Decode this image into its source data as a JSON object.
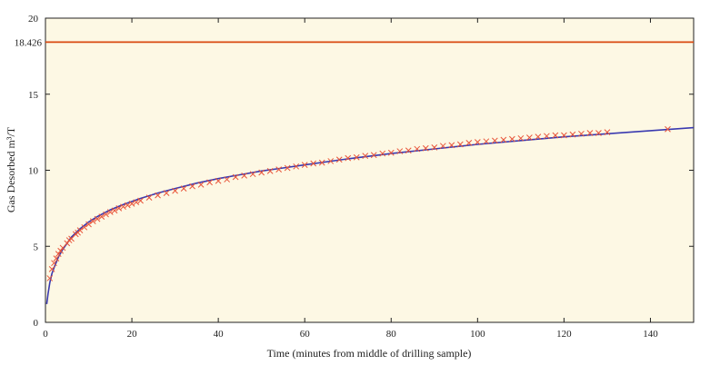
{
  "chart_data": {
    "type": "scatter",
    "title": "",
    "xlabel": "Time (minutes from middle of drilling sample)",
    "ylabel": "Gas Desorbed m³/T",
    "xlim": [
      0,
      150
    ],
    "ylim": [
      0,
      20
    ],
    "x_ticks": [
      "0",
      "20",
      "40",
      "60",
      "80",
      "100",
      "120",
      "140"
    ],
    "y_ticks": [
      "0",
      "5",
      "10",
      "15",
      "20"
    ],
    "grid": false,
    "background_color": "#fdf8e4",
    "reference_line": {
      "y": 18.426,
      "label": "18.426",
      "color": "#d9480f"
    },
    "series": [
      {
        "kind": "points",
        "marker": "x",
        "color": "#e8553a",
        "x": [
          1,
          1.5,
          2,
          2.5,
          3,
          3.5,
          4,
          5,
          5.5,
          6,
          7,
          7.5,
          8,
          9,
          10,
          11,
          12,
          13,
          14,
          15,
          16,
          17,
          18,
          19,
          20,
          21,
          22,
          24,
          26,
          28,
          30,
          32,
          34,
          36,
          38,
          40,
          42,
          44,
          46,
          48,
          50,
          52,
          54,
          56,
          58,
          60,
          62,
          64,
          66,
          68,
          70,
          72,
          74,
          76,
          78,
          80,
          82,
          84,
          86,
          88,
          90,
          92,
          94,
          96,
          98,
          100,
          102,
          104,
          106,
          108,
          110,
          112,
          114,
          116,
          118,
          120,
          122,
          124,
          126,
          128,
          130,
          144
        ],
        "y": [
          2.9,
          3.5,
          3.9,
          4.2,
          4.5,
          4.7,
          4.9,
          5.2,
          5.4,
          5.5,
          5.8,
          5.9,
          6.05,
          6.25,
          6.45,
          6.65,
          6.8,
          6.95,
          7.1,
          7.25,
          7.35,
          7.5,
          7.6,
          7.7,
          7.8,
          7.9,
          8.0,
          8.2,
          8.35,
          8.5,
          8.65,
          8.8,
          8.95,
          9.05,
          9.2,
          9.3,
          9.4,
          9.55,
          9.65,
          9.75,
          9.85,
          9.95,
          10.05,
          10.15,
          10.25,
          10.35,
          10.45,
          10.5,
          10.6,
          10.7,
          10.8,
          10.85,
          10.95,
          11.0,
          11.1,
          11.15,
          11.25,
          11.3,
          11.4,
          11.45,
          11.5,
          11.6,
          11.65,
          11.7,
          11.8,
          11.85,
          11.9,
          11.95,
          12.0,
          12.05,
          12.1,
          12.15,
          12.2,
          12.25,
          12.3,
          12.3,
          12.35,
          12.4,
          12.45,
          12.45,
          12.5,
          12.7
        ]
      },
      {
        "kind": "fit",
        "color": "#3a3ab0",
        "x": [
          0.3,
          0.6,
          1,
          1.5,
          2,
          3,
          4,
          5,
          6,
          8,
          10,
          12,
          15,
          18,
          22,
          26,
          30,
          35,
          40,
          45,
          50,
          55,
          60,
          70,
          80,
          90,
          100,
          110,
          120,
          130,
          140,
          150
        ],
        "y": [
          1.2,
          1.9,
          2.6,
          3.2,
          3.6,
          4.3,
          4.8,
          5.2,
          5.6,
          6.15,
          6.6,
          6.95,
          7.4,
          7.75,
          8.15,
          8.5,
          8.8,
          9.15,
          9.45,
          9.7,
          9.95,
          10.15,
          10.35,
          10.75,
          11.1,
          11.4,
          11.7,
          11.95,
          12.2,
          12.4,
          12.6,
          12.8
        ]
      }
    ]
  }
}
